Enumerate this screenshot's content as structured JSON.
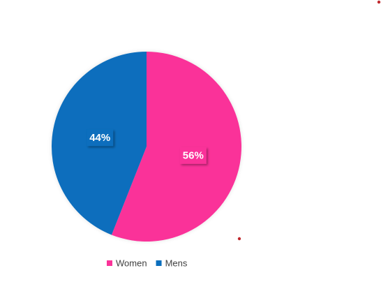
{
  "chart_data": {
    "type": "pie",
    "categories": [
      "Women",
      "Mens"
    ],
    "values": [
      56,
      44
    ],
    "value_labels": [
      "56%",
      "44%"
    ],
    "colors": [
      "#fa3399",
      "#0a6ebd"
    ],
    "legend": "bottom"
  }
}
